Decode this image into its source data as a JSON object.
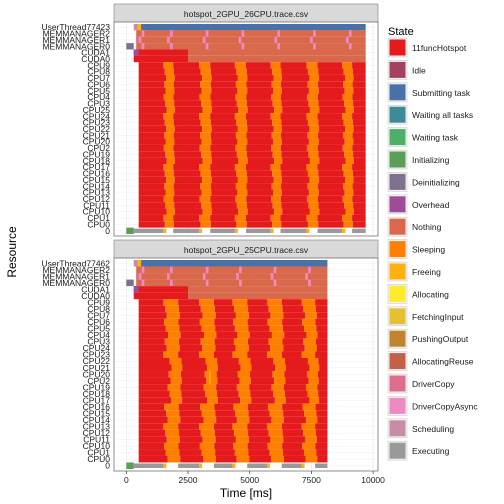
{
  "chart_data": {
    "type": "gantt",
    "xlabel": "Time [ms]",
    "ylabel": "Resource",
    "xlim": [
      -500,
      10200
    ],
    "x_ticks": [
      0,
      2500,
      5000,
      7500,
      10000
    ],
    "x_tick_labels": [
      "0",
      "2500",
      "5000",
      "7500",
      "10000"
    ],
    "grid": true,
    "legend": {
      "title": "State",
      "position": "right",
      "entries": [
        {
          "label": "11funcHotspot",
          "color": "#e41a1c"
        },
        {
          "label": "Idle",
          "color": "#a5405e"
        },
        {
          "label": "Submitting task",
          "color": "#4a70a8"
        },
        {
          "label": "Waiting all tasks",
          "color": "#3d8b96"
        },
        {
          "label": "Waiting task",
          "color": "#4daf68"
        },
        {
          "label": "Initializing",
          "color": "#5a9e58"
        },
        {
          "label": "Deinitializing",
          "color": "#7e7090"
        },
        {
          "label": "Overhead",
          "color": "#a04b97"
        },
        {
          "label": "Nothing",
          "color": "#d9694a"
        },
        {
          "label": "Sleeping",
          "color": "#ff7f00"
        },
        {
          "label": "Freeing",
          "color": "#ffb10f"
        },
        {
          "label": "Allocating",
          "color": "#ffea2b"
        },
        {
          "label": "FetchingInput",
          "color": "#e3c132"
        },
        {
          "label": "PushingOutput",
          "color": "#c0832e"
        },
        {
          "label": "AllocatingReuse",
          "color": "#c2604a"
        },
        {
          "label": "DriverCopy",
          "color": "#de6e8e"
        },
        {
          "label": "DriverCopyAsync",
          "color": "#ee89c2"
        },
        {
          "label": "Scheduling",
          "color": "#c98ca8"
        },
        {
          "label": "Executing",
          "color": "#999999"
        }
      ]
    },
    "panels": [
      {
        "title": "hotspot_2GPU_26CPU.trace.csv",
        "resources": [
          "UserThread77423",
          "MEMMANAGER2",
          "MEMMANAGER1",
          "MEMMANAGER0",
          "CUDA1",
          "CUDA0",
          "CPU9",
          "CPU8",
          "CPU7",
          "CPU6",
          "CPU5",
          "CPU4",
          "CPU3",
          "CPU25",
          "CPU24",
          "CPU23",
          "CPU22",
          "CPU21",
          "CPU20",
          "CPU2",
          "CPU19",
          "CPU18",
          "CPU17",
          "CPU16",
          "CPU15",
          "CPU14",
          "CPU13",
          "CPU12",
          "CPU11",
          "CPU10",
          "CPU1",
          "CPU0",
          "0"
        ],
        "end_time": 9700,
        "sleep_intervals": [
          [
            1500,
            1900
          ],
          [
            2950,
            3400
          ],
          [
            4400,
            4850
          ],
          [
            5850,
            6250
          ],
          [
            7300,
            7750
          ],
          [
            8750,
            9150
          ]
        ],
        "row_staggers": [
          0,
          60,
          120,
          40,
          100,
          20,
          80,
          140,
          0,
          60,
          120,
          40,
          100,
          20,
          80,
          140,
          0,
          60,
          120,
          40,
          100,
          20,
          80,
          140,
          0,
          60
        ],
        "bottom_row": {
          "initializing": [
            0,
            300
          ],
          "executing": [
            [
              300,
              1500
            ],
            [
              1900,
              2950
            ],
            [
              3400,
              4400
            ],
            [
              4850,
              5850
            ],
            [
              6250,
              7300
            ],
            [
              7750,
              8750
            ],
            [
              9150,
              9700
            ]
          ],
          "freeing_marks": [
            1500,
            2950,
            4400,
            5850,
            7300,
            8750
          ]
        }
      },
      {
        "title": "hotspot_2GPU_25CPU.trace.csv",
        "resources": [
          "UserThread77462",
          "MEMMANAGER2",
          "MEMMANAGER1",
          "MEMMANAGER0",
          "CUDA1",
          "CUDA0",
          "CPU9",
          "CPU8",
          "CPU7",
          "CPU6",
          "CPU5",
          "CPU4",
          "CPU3",
          "CPU24",
          "CPU23",
          "CPU22",
          "CPU21",
          "CPU20",
          "CPU2",
          "CPU19",
          "CPU18",
          "CPU17",
          "CPU16",
          "CPU15",
          "CPU14",
          "CPU13",
          "CPU12",
          "CPU11",
          "CPU10",
          "CPU1",
          "CPU0",
          "0"
        ],
        "end_time": 8150,
        "sleep_intervals": [
          [
            1500,
            2100
          ],
          [
            2950,
            3550
          ],
          [
            4300,
            4900
          ],
          [
            5700,
            6300
          ],
          [
            7100,
            7650
          ]
        ],
        "row_staggers": [
          0,
          70,
          140,
          30,
          100,
          200,
          60,
          130,
          0,
          260,
          330,
          220,
          290,
          180,
          250,
          320,
          40,
          110,
          180,
          0,
          70,
          140,
          30,
          100,
          170
        ],
        "bottom_row": {
          "initializing": [
            0,
            300
          ],
          "executing": [
            [
              300,
              1500
            ],
            [
              2100,
              2950
            ],
            [
              3550,
              4300
            ],
            [
              4900,
              5700
            ],
            [
              6300,
              7100
            ],
            [
              7650,
              8150
            ]
          ],
          "freeing_marks": [
            1500,
            2950,
            4300,
            5700,
            7100
          ]
        }
      }
    ]
  }
}
